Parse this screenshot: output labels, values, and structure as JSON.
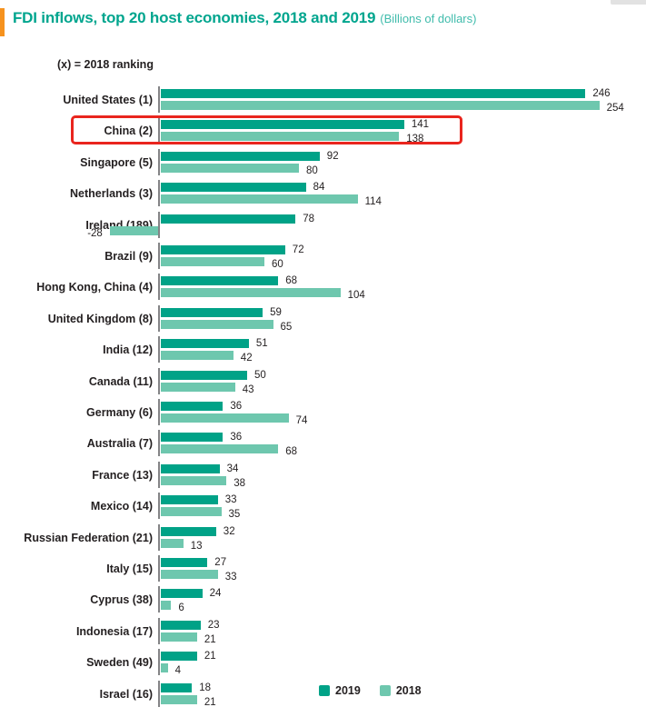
{
  "header": {
    "title": "FDI inflows, top 20 host economies, 2018 and 2019",
    "units": "(Billions of dollars)",
    "note": "(x) = 2018  ranking"
  },
  "legend": {
    "position": "bottom",
    "items": [
      {
        "label": "2019",
        "color": "#00A287"
      },
      {
        "label": "2018",
        "color": "#6EC7AE"
      }
    ]
  },
  "highlight": {
    "target": "China (2)",
    "color": "#E9251E",
    "shape": "red-rounded-rectangle"
  },
  "colors": {
    "series_2019": "#00A287",
    "series_2018": "#6EC7AE",
    "title_teal": "#00A58E",
    "subtitle_teal": "#40BCAC",
    "accent_orange": "#F6921E",
    "text_dark": "#231F20",
    "axis_gray": "#6D6E71",
    "highlight_red": "#E9251E"
  },
  "chart_data": {
    "type": "bar",
    "orientation": "horizontal",
    "title": "FDI inflows, top 20 host economies, 2018 and 2019",
    "subtitle": "(Billions of dollars)",
    "note": "(x) = 2018 ranking",
    "value_axis_label": "Billions of dollars",
    "grid": false,
    "legend_position": "bottom-center",
    "xlim": [
      -30,
      280
    ],
    "categories": [
      "United States (1)",
      "China (2)",
      "Singapore (5)",
      "Netherlands (3)",
      "Ireland (189)",
      "Brazil (9)",
      "Hong Kong, China (4)",
      "United Kingdom (8)",
      "India (12)",
      "Canada (11)",
      "Germany (6)",
      "Australia (7)",
      "France (13)",
      "Mexico (14)",
      "Russian Federation (21)",
      "Italy (15)",
      "Cyprus (38)",
      "Indonesia (17)",
      "Sweden (49)",
      "Israel (16)"
    ],
    "series": [
      {
        "name": "2019",
        "color": "#00A287",
        "values": [
          246,
          141,
          92,
          84,
          78,
          72,
          68,
          59,
          51,
          50,
          36,
          36,
          34,
          33,
          32,
          27,
          24,
          23,
          21,
          18
        ]
      },
      {
        "name": "2018",
        "color": "#6EC7AE",
        "values": [
          254,
          138,
          80,
          114,
          -28,
          60,
          104,
          65,
          42,
          43,
          74,
          68,
          38,
          35,
          13,
          33,
          6,
          21,
          4,
          21
        ]
      }
    ],
    "highlighted_category": "China (2)"
  }
}
